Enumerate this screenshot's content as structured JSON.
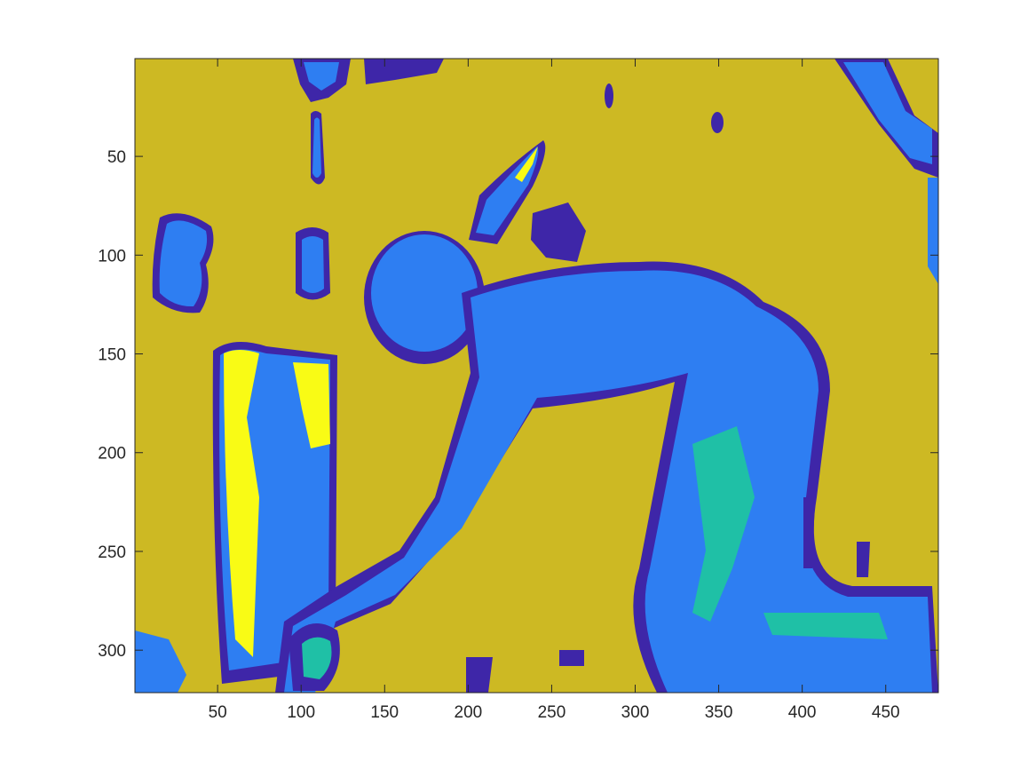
{
  "chart_data": {
    "type": "heatmap",
    "title": "",
    "xlabel": "",
    "ylabel": "",
    "xlim": [
      0.5,
      481.5
    ],
    "ylim": [
      0.5,
      321.5
    ],
    "y_reversed": true,
    "grid": false,
    "legend": "none",
    "x_ticks": [
      50,
      100,
      150,
      200,
      250,
      300,
      350,
      400,
      450
    ],
    "y_ticks": [
      50,
      100,
      150,
      200,
      250,
      300
    ],
    "x_tick_labels": [
      "50",
      "100",
      "150",
      "200",
      "250",
      "300",
      "350",
      "400",
      "450"
    ],
    "y_tick_labels": [
      "50",
      "100",
      "150",
      "200",
      "250",
      "300"
    ],
    "colormap": [
      "#3e26a8",
      "#2e7ef2",
      "#1fc0a6",
      "#cdb923",
      "#f9fb15"
    ],
    "background_level": 3
  }
}
